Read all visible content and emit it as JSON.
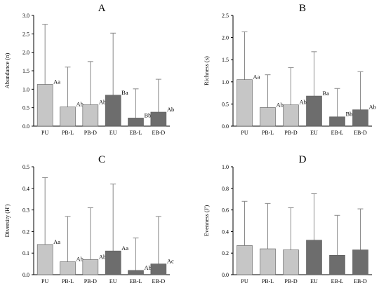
{
  "colors": {
    "light": "#c6c6c6",
    "dark": "#6d6d6d",
    "axis": "#000000",
    "error": "#8a8a8a"
  },
  "chart_data": [
    {
      "type": "bar",
      "panel": "A",
      "ylabel": "Abundance (n)",
      "categories": [
        "PU",
        "PB-L",
        "PB-D",
        "EU",
        "EB-L",
        "EB-D"
      ],
      "values": [
        1.13,
        0.52,
        0.58,
        0.84,
        0.22,
        0.38
      ],
      "errors": [
        1.63,
        1.08,
        1.17,
        1.68,
        0.79,
        0.89
      ],
      "letters": [
        "Aa",
        "Ab",
        "Ab",
        "Ba",
        "Bb",
        "Ab"
      ],
      "shades": [
        "light",
        "light",
        "light",
        "dark",
        "dark",
        "dark"
      ],
      "ylim": [
        0,
        3.0
      ],
      "yticks": [
        0.0,
        0.5,
        1.0,
        1.5,
        2.0,
        2.5,
        3.0
      ],
      "tick_labels": [
        "0.0",
        "0.5",
        "1.0",
        "1.5",
        "2.0",
        "2.5",
        "3.0"
      ]
    },
    {
      "type": "bar",
      "panel": "B",
      "ylabel": "Richness (s)",
      "categories": [
        "PU",
        "PB-L",
        "PB-D",
        "EU",
        "EB-L",
        "EB-D"
      ],
      "values": [
        1.05,
        0.42,
        0.48,
        0.68,
        0.21,
        0.37
      ],
      "errors": [
        1.08,
        0.74,
        0.84,
        1.0,
        0.64,
        0.86
      ],
      "letters": [
        "Aa",
        "Ab",
        "Ab",
        "Ba",
        "Bb",
        "Ab"
      ],
      "shades": [
        "light",
        "light",
        "light",
        "dark",
        "dark",
        "dark"
      ],
      "ylim": [
        0,
        2.5
      ],
      "yticks": [
        0.0,
        0.5,
        1.0,
        1.5,
        2.0,
        2.5
      ],
      "tick_labels": [
        "0.0",
        "0.5",
        "1.0",
        "1.5",
        "2.0",
        "2.5"
      ]
    },
    {
      "type": "bar",
      "panel": "C",
      "ylabel": "Diversity (H')",
      "categories": [
        "PU",
        "PB-L",
        "PB-D",
        "EU",
        "EB-L",
        "EB-D"
      ],
      "values": [
        0.14,
        0.06,
        0.07,
        0.11,
        0.02,
        0.05
      ],
      "errors": [
        0.31,
        0.21,
        0.24,
        0.31,
        0.15,
        0.22
      ],
      "letters": [
        "Aa",
        "Ab",
        "Ab",
        "Aa",
        "Ab",
        "Ac"
      ],
      "shades": [
        "light",
        "light",
        "light",
        "dark",
        "dark",
        "dark"
      ],
      "ylim": [
        0,
        0.5
      ],
      "yticks": [
        0.0,
        0.1,
        0.2,
        0.3,
        0.4,
        0.5
      ],
      "tick_labels": [
        "0.0",
        "0.1",
        "0.2",
        "0.3",
        "0.4",
        "0.5"
      ]
    },
    {
      "type": "bar",
      "panel": "D",
      "ylabel": "Evenness (J')",
      "categories": [
        "PU",
        "PB-L",
        "PB-D",
        "EU",
        "EB-L",
        "EB-D"
      ],
      "values": [
        0.27,
        0.24,
        0.23,
        0.32,
        0.18,
        0.23
      ],
      "errors": [
        0.41,
        0.42,
        0.39,
        0.43,
        0.37,
        0.38
      ],
      "letters": [
        "",
        "",
        "",
        "",
        "",
        ""
      ],
      "shades": [
        "light",
        "light",
        "light",
        "dark",
        "dark",
        "dark"
      ],
      "ylim": [
        0,
        1.0
      ],
      "yticks": [
        0.0,
        0.2,
        0.4,
        0.6,
        0.8,
        1.0
      ],
      "tick_labels": [
        "0.0",
        "0.2",
        "0.4",
        "0.6",
        "0.8",
        "1.0"
      ]
    }
  ]
}
